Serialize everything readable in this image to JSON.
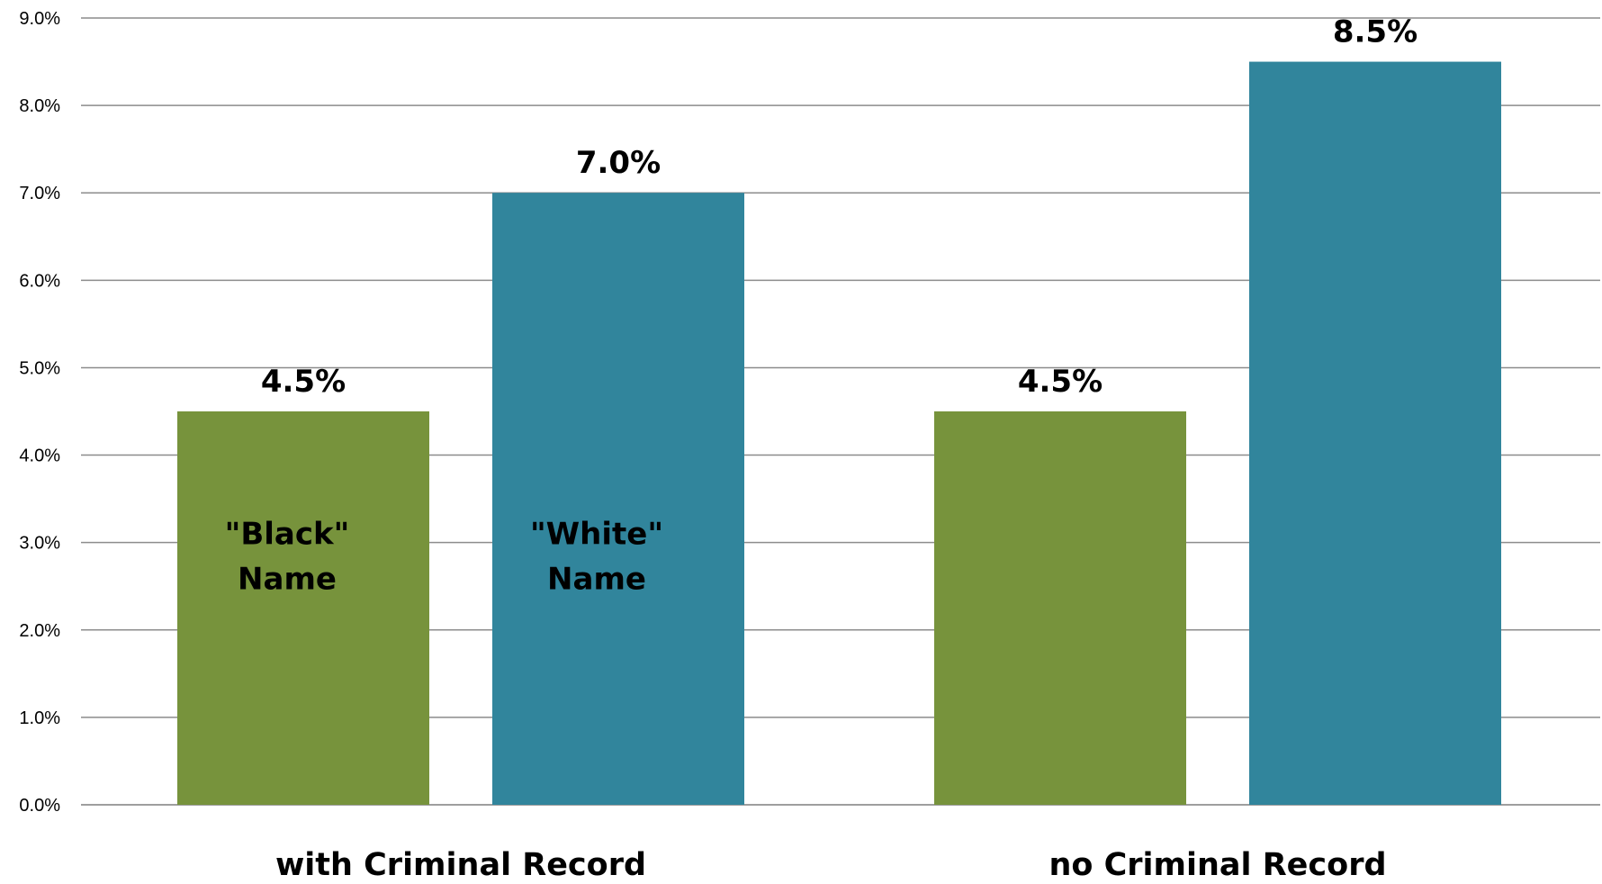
{
  "chart_data": {
    "type": "bar",
    "categories": [
      "with Criminal Record",
      "no Criminal Record"
    ],
    "series": [
      {
        "name": "\"Black\" Name",
        "name_lines": [
          "\"Black\"",
          "Name"
        ],
        "color": "#77933c",
        "values": [
          4.5,
          4.5
        ],
        "value_labels": [
          "4.5%",
          "4.5%"
        ]
      },
      {
        "name": "\"White\" Name",
        "name_lines": [
          "\"White\"",
          "Name"
        ],
        "color": "#31859c",
        "values": [
          7.0,
          8.5
        ],
        "value_labels": [
          "7.0%",
          "8.5%"
        ]
      }
    ],
    "yticks": [
      "0.0%",
      "1.0%",
      "2.0%",
      "3.0%",
      "4.0%",
      "5.0%",
      "6.0%",
      "7.0%",
      "8.0%",
      "9.0%"
    ],
    "ylim": [
      0,
      9
    ],
    "grid": true,
    "legend": "none (series names shown inside first group's bars)",
    "title": "",
    "xlabel": "",
    "ylabel": ""
  }
}
